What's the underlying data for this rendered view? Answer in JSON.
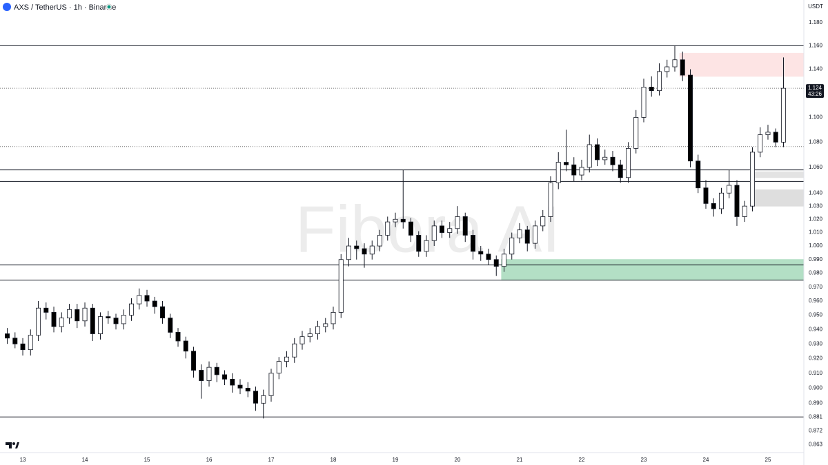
{
  "chart_data": {
    "type": "candlestick",
    "title": "AXS / TetherUS · 1h · Binance",
    "quote_currency": "USDT",
    "watermark": "Fibora AI",
    "x": [
      12.75,
      12.875,
      13,
      13.125,
      13.25,
      13.375,
      13.5,
      13.625,
      13.75,
      13.875,
      14,
      14.125,
      14.25,
      14.375,
      14.5,
      14.625,
      14.75,
      14.875,
      15,
      15.125,
      15.25,
      15.375,
      15.5,
      15.625,
      15.75,
      15.875,
      16,
      16.125,
      16.25,
      16.375,
      16.5,
      16.625,
      16.75,
      16.875,
      17,
      17.125,
      17.25,
      17.375,
      17.5,
      17.625,
      17.75,
      17.875,
      18,
      18.125,
      18.25,
      18.375,
      18.5,
      18.625,
      18.75,
      18.875,
      19,
      19.125,
      19.25,
      19.375,
      19.5,
      19.625,
      19.75,
      19.875,
      20,
      20.125,
      20.25,
      20.375,
      20.5,
      20.625,
      20.75,
      20.875,
      21,
      21.125,
      21.25,
      21.375,
      21.5,
      21.625,
      21.75,
      21.875,
      22,
      22.125,
      22.25,
      22.375,
      22.5,
      22.625,
      22.75,
      22.875,
      23,
      23.125,
      23.25,
      23.375,
      23.5,
      23.625,
      23.75,
      23.875,
      24,
      24.125,
      24.25,
      24.375,
      24.5,
      24.625,
      24.75,
      24.875,
      25,
      25.125,
      25.25
    ],
    "open": [
      0.937,
      0.934,
      0.93,
      0.926,
      0.936,
      0.955,
      0.952,
      0.942,
      0.948,
      0.954,
      0.946,
      0.955,
      0.937,
      0.949,
      0.948,
      0.944,
      0.95,
      0.958,
      0.964,
      0.96,
      0.956,
      0.948,
      0.938,
      0.932,
      0.925,
      0.912,
      0.905,
      0.914,
      0.909,
      0.906,
      0.902,
      0.9,
      0.898,
      0.89,
      0.895,
      0.91,
      0.918,
      0.921,
      0.93,
      0.935,
      0.937,
      0.942,
      0.944,
      0.952,
      0.99,
      1.0,
      0.998,
      0.994,
      1.0,
      1.008,
      1.018,
      1.02,
      1.018,
      1.008,
      0.996,
      1.004,
      1.015,
      1.01,
      1.013,
      1.022,
      1.008,
      0.996,
      0.994,
      0.99,
      0.985,
      0.994,
      1.006,
      1.012,
      1.002,
      1.015,
      1.022,
      1.048,
      1.064,
      1.062,
      1.054,
      1.06,
      1.078,
      1.066,
      1.068,
      1.062,
      1.052,
      1.075,
      1.1,
      1.125,
      1.122,
      1.138,
      1.142,
      1.148,
      1.135,
      1.065,
      1.044,
      1.032,
      1.028,
      1.04,
      1.046,
      1.022,
      1.03,
      1.072,
      1.086,
      1.088,
      1.08
    ],
    "high": [
      0.941,
      0.938,
      0.934,
      0.94,
      0.96,
      0.959,
      0.956,
      0.952,
      0.958,
      0.958,
      0.959,
      0.958,
      0.952,
      0.953,
      0.951,
      0.954,
      0.962,
      0.969,
      0.968,
      0.963,
      0.96,
      0.951,
      0.941,
      0.935,
      0.928,
      0.916,
      0.918,
      0.917,
      0.912,
      0.91,
      0.906,
      0.904,
      0.901,
      0.899,
      0.913,
      0.921,
      0.925,
      0.934,
      0.939,
      0.941,
      0.946,
      0.948,
      0.956,
      0.994,
      1.006,
      1.004,
      1.002,
      1.004,
      1.012,
      1.022,
      1.025,
      1.058,
      1.021,
      1.011,
      1.008,
      1.019,
      1.019,
      1.018,
      1.03,
      1.025,
      1.012,
      1.0,
      0.998,
      0.993,
      0.998,
      1.01,
      1.017,
      1.015,
      1.019,
      1.027,
      1.053,
      1.072,
      1.09,
      1.068,
      1.066,
      1.086,
      1.083,
      1.074,
      1.073,
      1.066,
      1.08,
      1.106,
      1.132,
      1.134,
      1.145,
      1.148,
      1.16,
      1.155,
      1.14,
      1.07,
      1.05,
      1.036,
      1.044,
      1.058,
      1.05,
      1.034,
      1.076,
      1.092,
      1.094,
      1.091,
      1.15
    ],
    "low": [
      0.93,
      0.927,
      0.922,
      0.922,
      0.932,
      0.947,
      0.938,
      0.938,
      0.944,
      0.941,
      0.942,
      0.932,
      0.933,
      0.944,
      0.94,
      0.94,
      0.946,
      0.954,
      0.956,
      0.951,
      0.944,
      0.934,
      0.928,
      0.92,
      0.907,
      0.893,
      0.901,
      0.904,
      0.902,
      0.897,
      0.896,
      0.894,
      0.885,
      0.88,
      0.891,
      0.906,
      0.914,
      0.917,
      0.926,
      0.931,
      0.933,
      0.938,
      0.94,
      0.948,
      0.985,
      0.99,
      0.984,
      0.99,
      0.996,
      1.004,
      1.014,
      1.013,
      1.003,
      0.992,
      0.992,
      1.0,
      1.006,
      1.006,
      1.009,
      1.003,
      0.99,
      0.989,
      0.986,
      0.978,
      0.981,
      0.99,
      1.002,
      0.996,
      0.998,
      1.011,
      1.018,
      1.043,
      1.057,
      1.049,
      1.05,
      1.056,
      1.061,
      1.062,
      1.057,
      1.048,
      1.048,
      1.071,
      1.096,
      1.117,
      1.118,
      1.133,
      1.138,
      1.13,
      1.06,
      1.04,
      1.028,
      1.022,
      1.024,
      1.036,
      1.015,
      1.018,
      1.026,
      1.068,
      1.082,
      1.076,
      1.076
    ],
    "close": [
      0.934,
      0.93,
      0.926,
      0.936,
      0.955,
      0.952,
      0.942,
      0.948,
      0.954,
      0.946,
      0.955,
      0.937,
      0.949,
      0.948,
      0.944,
      0.95,
      0.958,
      0.964,
      0.96,
      0.956,
      0.948,
      0.938,
      0.932,
      0.925,
      0.912,
      0.905,
      0.914,
      0.909,
      0.906,
      0.902,
      0.9,
      0.898,
      0.89,
      0.895,
      0.91,
      0.918,
      0.921,
      0.93,
      0.935,
      0.937,
      0.942,
      0.944,
      0.952,
      0.99,
      1.0,
      0.998,
      0.994,
      1.0,
      1.008,
      1.018,
      1.02,
      1.018,
      1.008,
      0.996,
      1.004,
      1.015,
      1.01,
      1.013,
      1.022,
      1.008,
      0.996,
      0.994,
      0.99,
      0.985,
      0.994,
      1.006,
      1.012,
      1.002,
      1.015,
      1.022,
      1.048,
      1.064,
      1.062,
      1.054,
      1.06,
      1.078,
      1.066,
      1.068,
      1.062,
      1.052,
      1.075,
      1.1,
      1.125,
      1.122,
      1.138,
      1.142,
      1.148,
      1.135,
      1.065,
      1.044,
      1.032,
      1.028,
      1.04,
      1.046,
      1.022,
      1.03,
      1.072,
      1.086,
      1.088,
      1.08,
      1.124
    ],
    "up_color": "#ffffff",
    "down_color": "#000000",
    "xlim": [
      12.633,
      25.578
    ],
    "xticks": [
      13,
      14,
      15,
      16,
      17,
      18,
      19,
      20,
      21,
      22,
      23,
      24,
      25
    ],
    "ylim": [
      0.858,
      1.2
    ],
    "log_scale": true,
    "grid": false,
    "yticks": [
      {
        "value": 1.18,
        "label": "1.180"
      },
      {
        "value": 1.16,
        "label": "1.160"
      },
      {
        "value": 1.14,
        "label": "1.140"
      },
      {
        "value": 1.1,
        "label": "1.100"
      },
      {
        "value": 1.08,
        "label": "1.080"
      },
      {
        "value": 1.06,
        "label": "1.060"
      },
      {
        "value": 1.04,
        "label": "1.040"
      },
      {
        "value": 1.03,
        "label": "1.030"
      },
      {
        "value": 1.02,
        "label": "1.020"
      },
      {
        "value": 1.01,
        "label": "1.010"
      },
      {
        "value": 1,
        "label": "1.000"
      },
      {
        "value": 0.99,
        "label": "0.990"
      },
      {
        "value": 0.98,
        "label": "0.980"
      },
      {
        "value": 0.97,
        "label": "0.970"
      },
      {
        "value": 0.96,
        "label": "0.960"
      },
      {
        "value": 0.95,
        "label": "0.950"
      },
      {
        "value": 0.94,
        "label": "0.940"
      },
      {
        "value": 0.93,
        "label": "0.930"
      },
      {
        "value": 0.92,
        "label": "0.920"
      },
      {
        "value": 0.91,
        "label": "0.910"
      },
      {
        "value": 0.9,
        "label": "0.900"
      },
      {
        "value": 0.89,
        "label": "0.890"
      },
      0.881,
      0.872,
      0.863
    ],
    "levels": [
      {
        "value": 1.16,
        "style": "solid"
      },
      {
        "value": 1.0765,
        "style": "dotted"
      },
      {
        "value": 1.058,
        "style": "solid"
      },
      {
        "value": 1.049,
        "style": "solid"
      },
      {
        "value": 0.986,
        "style": "solid"
      },
      {
        "value": 0.975,
        "style": "solid"
      },
      {
        "value": 0.881,
        "style": "solid"
      }
    ],
    "zones": [
      {
        "from": 1.1535,
        "to": 1.134,
        "start": 23.58,
        "color": "#fde4e4"
      },
      {
        "from": 1.0565,
        "to": 1.052,
        "start": 24.72,
        "color": "#e3e3e3"
      },
      {
        "from": 1.0425,
        "to": 1.03,
        "start": 24.72,
        "color": "#dedede"
      },
      {
        "from": 0.99,
        "to": 0.975,
        "start": 20.71,
        "color": "#b3dfc5"
      }
    ],
    "last_price": 1.124,
    "countdown": "43:26"
  }
}
